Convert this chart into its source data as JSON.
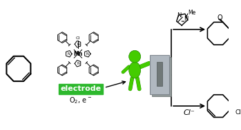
{
  "bg_color": "#ffffff",
  "electrode_color": "#2db82d",
  "electrode_text": "electrode",
  "electrode_text_color": "#ffffff",
  "o2_text": "O2, e⁻",
  "cl_text": "Cl⁻",
  "line_color": "#000000",
  "green_body": "#44cc00",
  "green_dark": "#228800",
  "panel_color": "#b0b8c0",
  "panel_dark": "#808890",
  "fig_width": 3.49,
  "fig_height": 1.89,
  "dpi": 100
}
